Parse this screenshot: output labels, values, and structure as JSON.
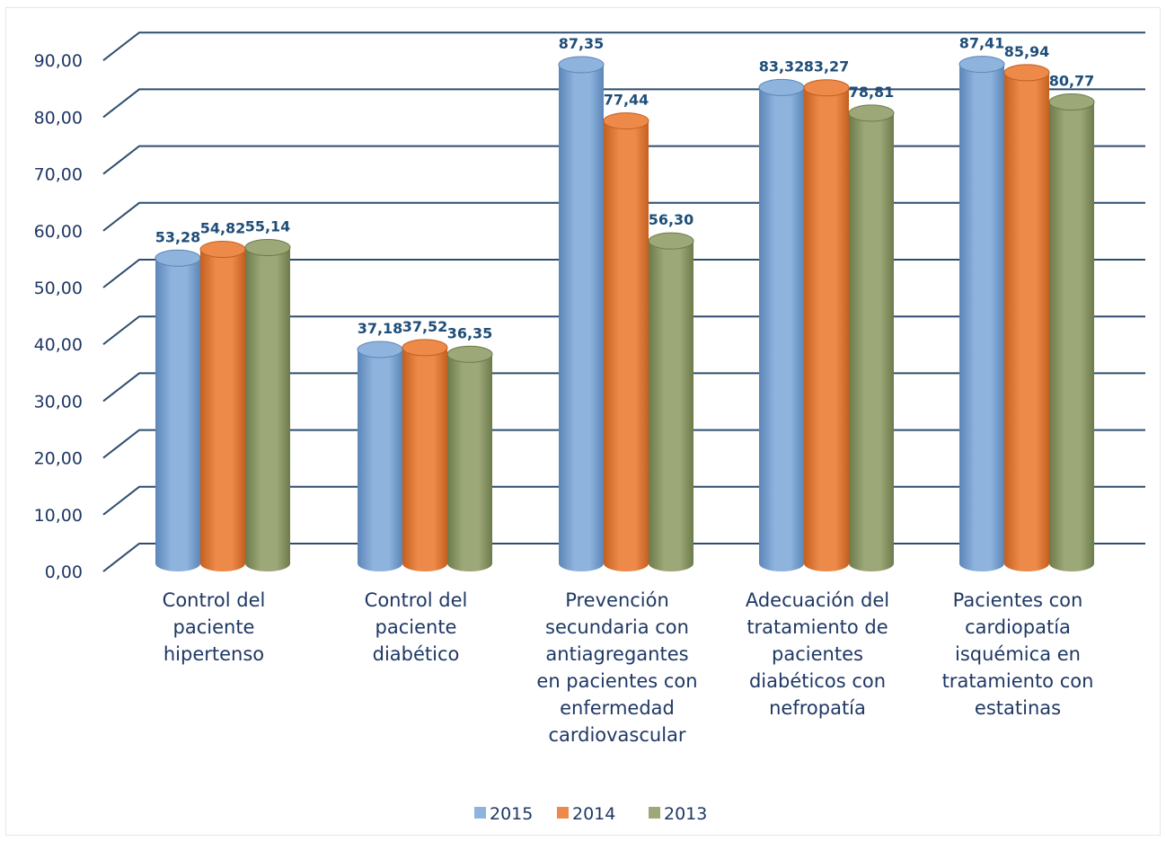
{
  "chart_data": {
    "type": "bar",
    "style": "3d-cylinder",
    "categories": [
      [
        "Control del",
        "paciente",
        "hipertenso"
      ],
      [
        "Control del",
        "paciente",
        "diabético"
      ],
      [
        "Prevención",
        "secundaria con",
        "antiagregantes",
        "en pacientes con",
        "enfermedad",
        "cardiovascular"
      ],
      [
        "Adecuación del",
        "tratamiento de",
        "pacientes",
        "diabéticos con",
        "nefropatía"
      ],
      [
        "Pacientes con",
        "cardiopatía",
        "isquémica en",
        "tratamiento con",
        "estatinas"
      ]
    ],
    "series": [
      {
        "name": "2015",
        "color": "#8eb3dd",
        "dark": "#5c86b8",
        "values": [
          53.28,
          37.18,
          87.35,
          83.32,
          87.41
        ],
        "labels": [
          "53,28",
          "37,18",
          "87,35",
          "83,32",
          "87,41"
        ]
      },
      {
        "name": "2014",
        "color": "#ed8a4a",
        "dark": "#c45f1f",
        "values": [
          54.82,
          37.52,
          77.44,
          83.27,
          85.94
        ],
        "labels": [
          "54,82",
          "37,52",
          "77,44",
          "83,27",
          "85,94"
        ]
      },
      {
        "name": "2013",
        "color": "#9ca877",
        "dark": "#6d7a4a",
        "values": [
          55.14,
          36.35,
          56.3,
          78.81,
          80.77
        ],
        "labels": [
          "55,14",
          "36,35",
          "56,30",
          "78,81",
          "80,77"
        ]
      }
    ],
    "yticks": [
      "0,00",
      "10,00",
      "20,00",
      "30,00",
      "40,00",
      "50,00",
      "60,00",
      "70,00",
      "80,00",
      "90,00"
    ],
    "ylim": [
      0,
      90
    ],
    "grid": true,
    "gridline_color": "#2e4d6e",
    "legend_position": "bottom"
  }
}
